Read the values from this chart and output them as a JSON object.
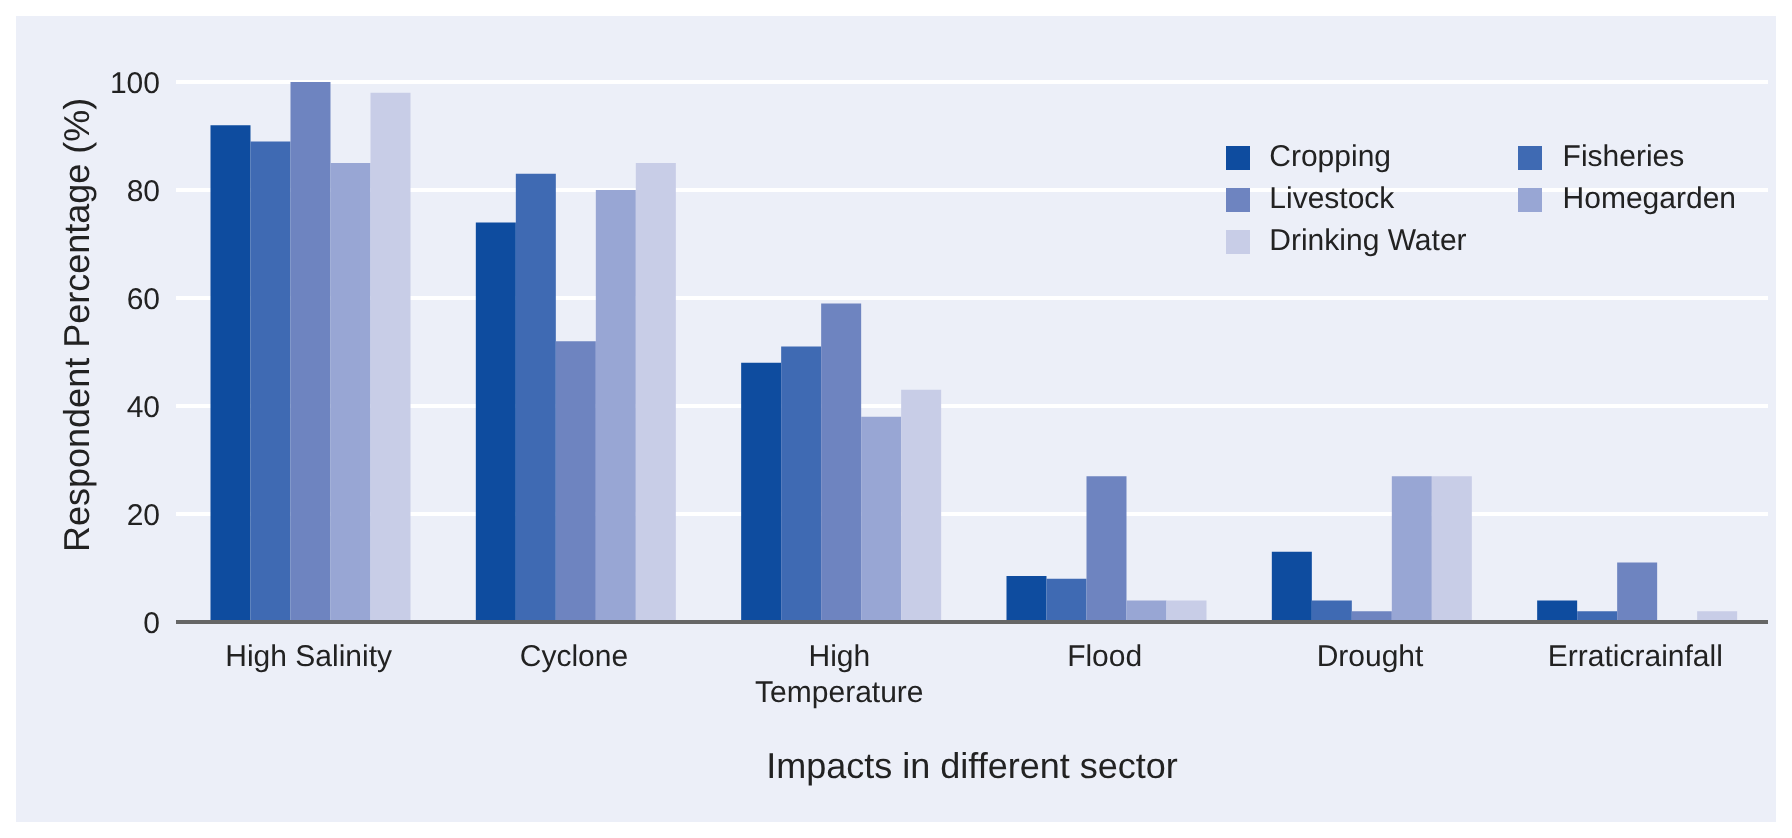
{
  "chart_data": {
    "type": "bar",
    "xlabel": "Impacts in different sector",
    "ylabel": "Respondent Percentage (%)",
    "categories": [
      "High Salinity",
      "Cyclone",
      "High Temperature",
      "Flood",
      "Drought",
      "Erraticrainfall"
    ],
    "series": [
      {
        "name": "Cropping",
        "color": "#0e4c9f",
        "values": [
          92,
          74,
          48,
          8.5,
          13,
          4
        ]
      },
      {
        "name": "Fisheries",
        "color": "#3f6ab3",
        "values": [
          89,
          83,
          51,
          8,
          4,
          2
        ]
      },
      {
        "name": "Livestock",
        "color": "#6e84c0",
        "values": [
          100,
          52,
          59,
          27,
          2,
          11
        ]
      },
      {
        "name": "Homegarden",
        "color": "#98a6d4",
        "values": [
          85,
          80,
          38,
          4,
          27,
          0
        ]
      },
      {
        "name": "Drinking Water",
        "color": "#c8cde7",
        "values": [
          98,
          85,
          43,
          4,
          27,
          2
        ]
      }
    ],
    "ylim": [
      0,
      100
    ],
    "yticks": [
      0,
      20,
      40,
      60,
      80,
      100
    ],
    "grid": "y",
    "legend": "top right"
  }
}
